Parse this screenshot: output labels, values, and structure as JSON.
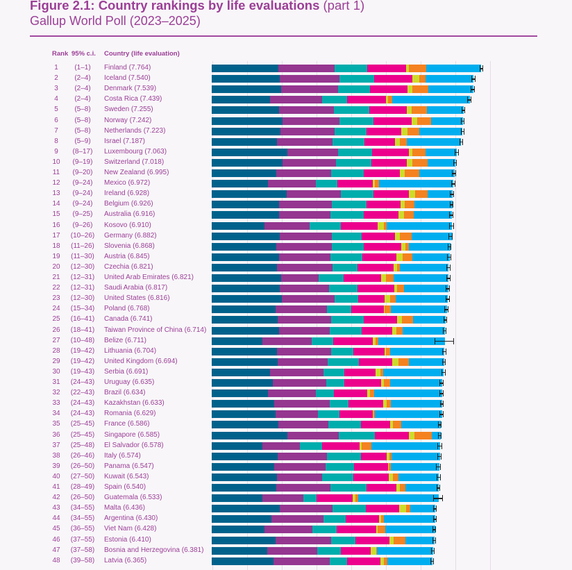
{
  "header": {
    "title_bold": "Figure 2.1: Country rankings by life evaluations",
    "title_light": "(part 1)",
    "subtitle": "Gallup World Poll (2023–2025)"
  },
  "columns": {
    "rank": "Rank",
    "ci": "95% c.i.",
    "country": "Country (life evaluation)"
  },
  "chart_data": {
    "type": "bar",
    "orientation": "horizontal-stacked",
    "title": "Figure 2.1: Country rankings by life evaluations (part 1)",
    "subtitle": "Gallup World Poll (2023–2025)",
    "xlim": [
      0,
      8
    ],
    "grid": true,
    "series_colors": [
      "#00628b",
      "#953690",
      "#00adad",
      "#ec008c",
      "#cddc29",
      "#f58220",
      "#00aeef"
    ],
    "rows": [
      {
        "rank": "1",
        "ci": "1–1",
        "country": "Finland",
        "score": "7.764",
        "segments": [
          1.91,
          1.63,
          0.94,
          1.12,
          0.08,
          0.5,
          1.58
        ],
        "err": 0.04
      },
      {
        "rank": "2",
        "ci": "2–4",
        "country": "Iceland",
        "score": "7.540",
        "segments": [
          1.96,
          1.72,
          1.0,
          1.1,
          0.2,
          0.18,
          1.38
        ],
        "err": 0.07
      },
      {
        "rank": "3",
        "ci": "2–4",
        "country": "Denmark",
        "score": "7.539",
        "segments": [
          2.0,
          1.64,
          0.92,
          1.08,
          0.14,
          0.46,
          1.29
        ],
        "err": 0.07
      },
      {
        "rank": "4",
        "ci": "2–4",
        "country": "Costa Rica",
        "score": "7.439",
        "segments": [
          1.68,
          1.5,
          0.72,
          1.12,
          0.06,
          0.12,
          2.24
        ],
        "err": 0.07
      },
      {
        "rank": "5",
        "ci": "5–8",
        "country": "Sweden",
        "score": "7.255",
        "segments": [
          1.94,
          1.58,
          1.02,
          1.08,
          0.14,
          0.44,
          1.06
        ],
        "err": 0.06
      },
      {
        "rank": "6",
        "ci": "5–8",
        "country": "Norway",
        "score": "7.242",
        "segments": [
          2.04,
          1.64,
          0.98,
          1.1,
          0.16,
          0.4,
          0.92
        ],
        "err": 0.06
      },
      {
        "rank": "7",
        "ci": "5–8",
        "country": "Netherlands",
        "score": "7.223",
        "segments": [
          1.98,
          1.56,
          0.92,
          1.0,
          0.18,
          0.34,
          1.24
        ],
        "err": 0.05
      },
      {
        "rank": "8",
        "ci": "5–9",
        "country": "Israel",
        "score": "7.187",
        "segments": [
          1.88,
          1.6,
          0.92,
          0.88,
          0.14,
          0.2,
          1.56
        ],
        "err": 0.05
      },
      {
        "rank": "9",
        "ci": "8–17",
        "country": "Luxembourg",
        "score": "7.063",
        "segments": [
          2.18,
          1.46,
          0.98,
          1.06,
          0.1,
          0.38,
          0.9
        ],
        "err": 0.07
      },
      {
        "rank": "10",
        "ci": "9–19",
        "country": "Switzerland",
        "score": "7.018",
        "segments": [
          2.04,
          1.54,
          1.02,
          1.02,
          0.16,
          0.44,
          0.8
        ],
        "err": 0.06
      },
      {
        "rank": "11",
        "ci": "9–20",
        "country": "New Zealand",
        "score": "6.995",
        "segments": [
          1.86,
          1.58,
          0.94,
          1.04,
          0.14,
          0.42,
          1.01
        ],
        "err": 0.07
      },
      {
        "rank": "12",
        "ci": "9–24",
        "country": "Mexico",
        "score": "6.972",
        "segments": [
          1.62,
          1.38,
          0.62,
          1.02,
          0.06,
          0.12,
          2.14
        ],
        "err": 0.07
      },
      {
        "rank": "13",
        "ci": "9–24",
        "country": "Ireland",
        "score": "6.928",
        "segments": [
          2.16,
          1.56,
          0.94,
          1.02,
          0.18,
          0.36,
          0.71
        ],
        "err": 0.07
      },
      {
        "rank": "14",
        "ci": "9–24",
        "country": "Belgium",
        "score": "6.926",
        "segments": [
          1.94,
          1.52,
          1.0,
          0.98,
          0.12,
          0.28,
          1.09
        ],
        "err": 0.06
      },
      {
        "rank": "15",
        "ci": "9–25",
        "country": "Australia",
        "score": "6.916",
        "segments": [
          1.94,
          1.48,
          0.96,
          1.0,
          0.16,
          0.28,
          1.1
        ],
        "err": 0.07
      },
      {
        "rank": "16",
        "ci": "9–26",
        "country": "Kosovo",
        "score": "6.910",
        "segments": [
          1.52,
          1.3,
          0.9,
          1.06,
          0.18,
          0.08,
          1.87
        ],
        "err": 0.08
      },
      {
        "rank": "17",
        "ci": "10–26",
        "country": "Germany",
        "score": "6.882",
        "segments": [
          1.96,
          1.5,
          0.86,
          0.96,
          0.14,
          0.34,
          1.17
        ],
        "err": 0.07
      },
      {
        "rank": "18",
        "ci": "11–26",
        "country": "Slovenia",
        "score": "6.868",
        "segments": [
          1.86,
          1.6,
          0.92,
          1.08,
          0.12,
          0.1,
          1.19
        ],
        "err": 0.06
      },
      {
        "rank": "19",
        "ci": "11–30",
        "country": "Austria",
        "score": "6.845",
        "segments": [
          1.94,
          1.48,
          0.92,
          0.98,
          0.18,
          0.28,
          1.07
        ],
        "err": 0.07
      },
      {
        "rank": "20",
        "ci": "12–30",
        "country": "Czechia",
        "score": "6.821",
        "segments": [
          1.88,
          1.6,
          0.72,
          1.04,
          0.1,
          0.08,
          1.4
        ],
        "err": 0.07
      },
      {
        "rank": "21",
        "ci": "12–31",
        "country": "United Arab Emirates",
        "score": "6.821",
        "segments": [
          2.0,
          1.08,
          0.72,
          1.08,
          0.14,
          0.22,
          1.58
        ],
        "err": 0.07
      },
      {
        "rank": "22",
        "ci": "12–31",
        "country": "Saudi Arabia",
        "score": "6.817",
        "segments": [
          1.96,
          1.42,
          0.82,
          1.06,
          0.08,
          0.2,
          1.28
        ],
        "err": 0.07
      },
      {
        "rank": "23",
        "ci": "12–30",
        "country": "United States",
        "score": "6.816",
        "segments": [
          2.02,
          1.52,
          0.68,
          0.76,
          0.16,
          0.16,
          1.5
        ],
        "err": 0.07
      },
      {
        "rank": "24",
        "ci": "15–34",
        "country": "Poland",
        "score": "6.768",
        "segments": [
          1.84,
          1.48,
          0.7,
          0.94,
          0.02,
          0.18,
          1.61
        ],
        "err": 0.07
      },
      {
        "rank": "25",
        "ci": "16–41",
        "country": "Canada",
        "score": "6.741",
        "segments": [
          1.9,
          1.54,
          0.94,
          0.96,
          0.14,
          0.32,
          0.94
        ],
        "err": 0.06
      },
      {
        "rank": "26",
        "ci": "18–41",
        "country": "Taiwan Province of China",
        "score": "6.714",
        "segments": [
          1.94,
          1.46,
          0.92,
          0.88,
          0.12,
          0.18,
          1.21
        ],
        "err": 0.06
      },
      {
        "rank": "27",
        "ci": "10–48",
        "country": "Belize",
        "score": "6.711",
        "segments": [
          1.46,
          1.42,
          0.62,
          1.14,
          0.08,
          0.08,
          1.91
        ],
        "err": 0.29
      },
      {
        "rank": "28",
        "ci": "19–42",
        "country": "Lithuania",
        "score": "6.704",
        "segments": [
          1.88,
          1.56,
          0.64,
          0.9,
          0.04,
          0.12,
          1.56
        ],
        "err": 0.07
      },
      {
        "rank": "29",
        "ci": "19–42",
        "country": "United Kingdom",
        "score": "6.694",
        "segments": [
          1.9,
          1.44,
          0.9,
          0.96,
          0.18,
          0.3,
          1.01
        ],
        "err": 0.06
      },
      {
        "rank": "30",
        "ci": "19–43",
        "country": "Serbia",
        "score": "6.691",
        "segments": [
          1.68,
          1.54,
          0.6,
          0.9,
          0.14,
          0.08,
          1.74
        ],
        "err": 0.07
      },
      {
        "rank": "31",
        "ci": "24–43",
        "country": "Uruguay",
        "score": "6.635",
        "segments": [
          1.76,
          1.54,
          0.52,
          1.06,
          0.08,
          0.18,
          1.5
        ],
        "err": 0.07
      },
      {
        "rank": "32",
        "ci": "22–43",
        "country": "Brazil",
        "score": "6.634",
        "segments": [
          1.62,
          1.38,
          0.52,
          0.96,
          0.08,
          0.12,
          1.95
        ],
        "err": 0.07
      },
      {
        "rank": "33",
        "ci": "24–43",
        "country": "Kazakhstan",
        "score": "6.633",
        "segments": [
          1.8,
          1.6,
          0.54,
          1.0,
          0.1,
          0.12,
          1.47
        ],
        "err": 0.06
      },
      {
        "rank": "34",
        "ci": "24–43",
        "country": "Romania",
        "score": "6.629",
        "segments": [
          1.84,
          1.22,
          0.62,
          0.96,
          0.02,
          0.04,
          1.93
        ],
        "err": 0.07
      },
      {
        "rank": "35",
        "ci": "25–45",
        "country": "France",
        "score": "6.586",
        "segments": [
          1.92,
          1.44,
          0.94,
          0.84,
          0.08,
          0.24,
          1.13
        ],
        "err": 0.06
      },
      {
        "rank": "36",
        "ci": "25–45",
        "country": "Singapore",
        "score": "6.585",
        "segments": [
          2.18,
          1.48,
          1.04,
          0.98,
          0.16,
          0.5,
          0.25
        ],
        "err": 0.06
      },
      {
        "rank": "37",
        "ci": "25–48",
        "country": "El Salvador",
        "score": "6.578",
        "segments": [
          1.46,
          1.08,
          0.64,
          1.08,
          0.06,
          0.28,
          1.98
        ],
        "err": 0.08
      },
      {
        "rank": "38",
        "ci": "26–46",
        "country": "Italy",
        "score": "6.574",
        "segments": [
          1.9,
          1.42,
          0.98,
          0.74,
          0.08,
          0.06,
          1.39
        ],
        "err": 0.07
      },
      {
        "rank": "39",
        "ci": "26–50",
        "country": "Panama",
        "score": "6.547",
        "segments": [
          1.8,
          1.48,
          0.82,
          0.98,
          0.02,
          0.06,
          1.39
        ],
        "err": 0.08
      },
      {
        "rank": "40",
        "ci": "27–50",
        "country": "Kuwait",
        "score": "6.543",
        "segments": [
          1.88,
          1.3,
          0.9,
          1.02,
          0.12,
          0.16,
          1.16
        ],
        "err": 0.07
      },
      {
        "rank": "41",
        "ci": "28–49",
        "country": "Spain",
        "score": "6.540",
        "segments": [
          1.86,
          1.56,
          1.04,
          0.86,
          0.1,
          0.16,
          0.96
        ],
        "err": 0.06
      },
      {
        "rank": "42",
        "ci": "26–50",
        "country": "Guatemala",
        "score": "6.533",
        "segments": [
          1.46,
          1.18,
          0.38,
          1.04,
          0.08,
          0.08,
          2.31
        ],
        "err": 0.15
      },
      {
        "rank": "43",
        "ci": "34–55",
        "country": "Malta",
        "score": "6.436",
        "segments": [
          1.96,
          1.52,
          0.96,
          0.96,
          0.2,
          0.12,
          0.72
        ],
        "err": 0.06
      },
      {
        "rank": "44",
        "ci": "34–55",
        "country": "Argentina",
        "score": "6.430",
        "segments": [
          1.72,
          1.5,
          0.64,
          0.96,
          0.06,
          0.08,
          1.47
        ],
        "err": 0.06
      },
      {
        "rank": "45",
        "ci": "36–55",
        "country": "Viet Nam",
        "score": "6.428",
        "segments": [
          1.52,
          1.38,
          0.7,
          1.14,
          0.04,
          0.22,
          1.43
        ],
        "err": 0.06
      },
      {
        "rank": "46",
        "ci": "37–55",
        "country": "Estonia",
        "score": "6.410",
        "segments": [
          1.84,
          1.6,
          0.7,
          0.98,
          0.12,
          0.34,
          0.83
        ],
        "err": 0.06
      },
      {
        "rank": "47",
        "ci": "37–58",
        "country": "Bosnia and Herzegovina",
        "score": "6.381",
        "segments": [
          1.6,
          1.44,
          0.68,
          0.86,
          0.16,
          0.02,
          1.62
        ],
        "err": 0.06
      },
      {
        "rank": "48",
        "ci": "39–58",
        "country": "Latvia",
        "score": "6.365",
        "segments": [
          1.78,
          1.62,
          0.5,
          0.96,
          0.1,
          0.1,
          1.3
        ],
        "err": 0.06
      }
    ]
  }
}
